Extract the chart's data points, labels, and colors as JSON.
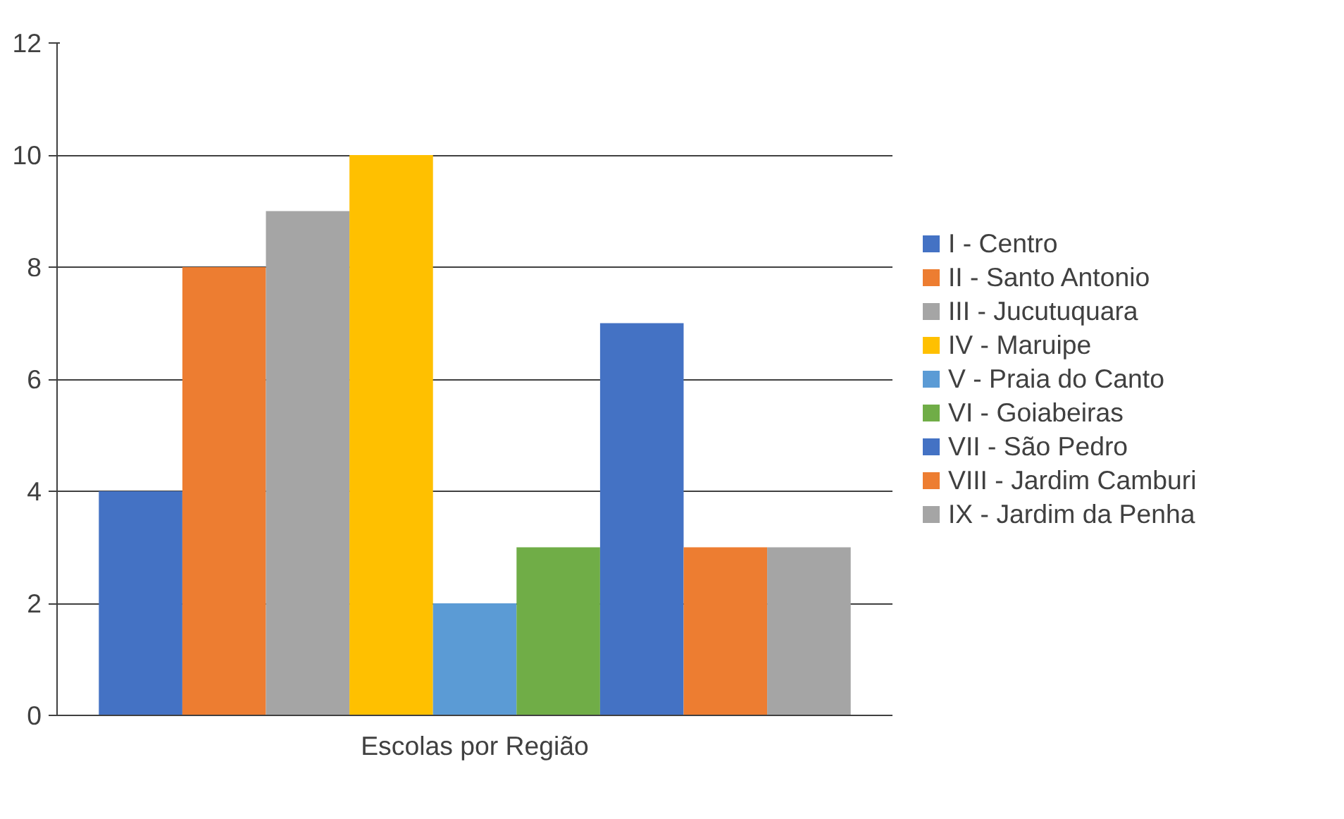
{
  "chart_data": {
    "type": "bar",
    "categories": [
      "Escolas por Região"
    ],
    "series": [
      {
        "name": "I - Centro",
        "color": "#4472c4",
        "values": [
          4
        ]
      },
      {
        "name": "II - Santo Antonio",
        "color": "#ed7d31",
        "values": [
          8
        ]
      },
      {
        "name": "III - Jucutuquara",
        "color": "#a5a5a5",
        "values": [
          9
        ]
      },
      {
        "name": "IV - Maruipe",
        "color": "#ffc000",
        "values": [
          10
        ]
      },
      {
        "name": "V - Praia do Canto",
        "color": "#5b9bd5",
        "values": [
          2
        ]
      },
      {
        "name": "VI - Goiabeiras",
        "color": "#70ad47",
        "values": [
          3
        ]
      },
      {
        "name": "VII - São Pedro",
        "color": "#4472c4",
        "values": [
          7
        ]
      },
      {
        "name": "VIII - Jardim Camburi",
        "color": "#ed7d31",
        "values": [
          3
        ]
      },
      {
        "name": "IX - Jardim da Penha",
        "color": "#a5a5a5",
        "values": [
          3
        ]
      }
    ],
    "ylim": [
      0,
      12
    ],
    "yticks": [
      0,
      2,
      4,
      6,
      8,
      10,
      12
    ],
    "grid": "y",
    "legend": "right"
  }
}
